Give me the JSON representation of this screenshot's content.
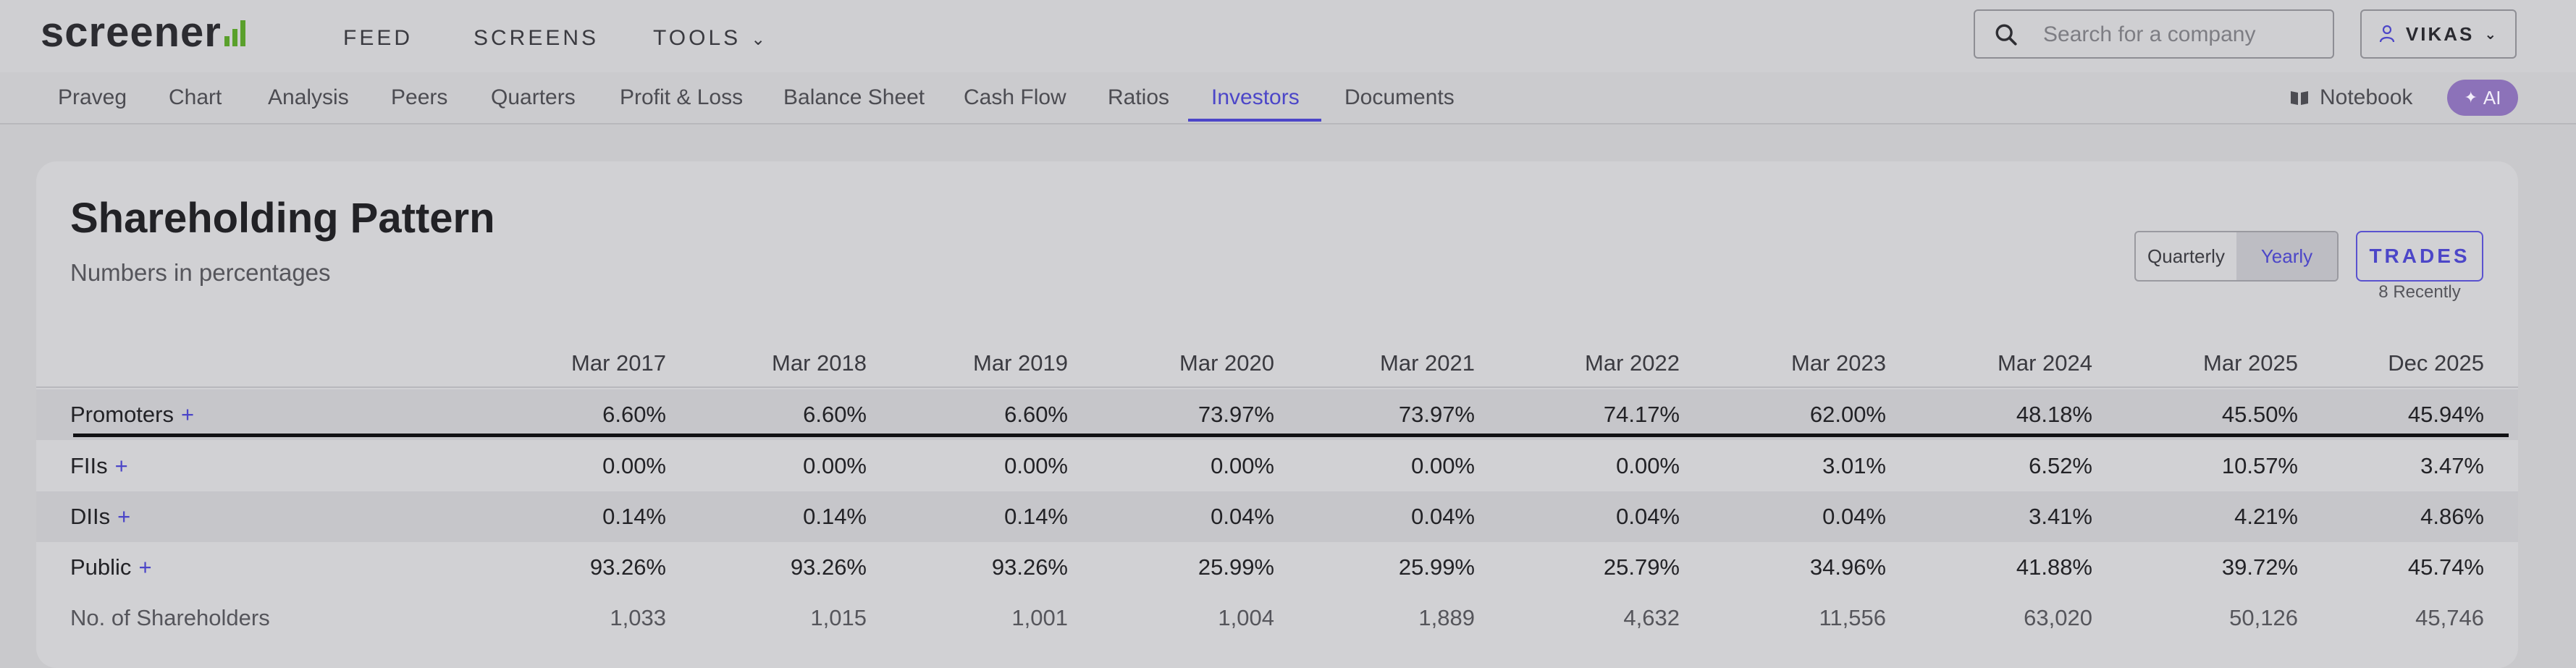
{
  "header": {
    "logo_text": "screener",
    "nav": [
      {
        "label": "FEED"
      },
      {
        "label": "SCREENS"
      },
      {
        "label": "TOOLS"
      }
    ],
    "search_placeholder": "Search for a company",
    "user_label": "VIKAS",
    "logo_color": "#5aa02c"
  },
  "subnav": {
    "items": [
      {
        "label": "Praveg"
      },
      {
        "label": "Chart"
      },
      {
        "label": "Analysis"
      },
      {
        "label": "Peers"
      },
      {
        "label": "Quarters"
      },
      {
        "label": "Profit & Loss"
      },
      {
        "label": "Balance Sheet"
      },
      {
        "label": "Cash Flow"
      },
      {
        "label": "Ratios"
      },
      {
        "label": "Investors"
      },
      {
        "label": "Documents"
      }
    ],
    "active": "Investors",
    "notebook_label": "Notebook",
    "ai_label": "AI",
    "accent_color": "#4c46c8"
  },
  "section": {
    "title": "Shareholding Pattern",
    "subtitle": "Numbers in percentages",
    "toggle": {
      "options": [
        "Quarterly",
        "Yearly"
      ],
      "selected": "Yearly"
    },
    "trades_label": "TRADES",
    "trades_note": "8 Recently"
  },
  "table": {
    "columns": [
      "Mar 2017",
      "Mar 2018",
      "Mar 2019",
      "Mar 2020",
      "Mar 2021",
      "Mar 2022",
      "Mar 2023",
      "Mar 2024",
      "Mar 2025",
      "Dec 2025"
    ],
    "rows": [
      {
        "label": "Promoters",
        "expandable": "+",
        "values": [
          "6.60%",
          "6.60%",
          "6.60%",
          "73.97%",
          "73.97%",
          "74.17%",
          "62.00%",
          "48.18%",
          "45.50%",
          "45.94%"
        ]
      },
      {
        "label": "FIIs",
        "expandable": "+",
        "values": [
          "0.00%",
          "0.00%",
          "0.00%",
          "0.00%",
          "0.00%",
          "0.00%",
          "3.01%",
          "6.52%",
          "10.57%",
          "3.47%"
        ]
      },
      {
        "label": "DIIs",
        "expandable": "+",
        "values": [
          "0.14%",
          "0.14%",
          "0.14%",
          "0.04%",
          "0.04%",
          "0.04%",
          "0.04%",
          "3.41%",
          "4.21%",
          "4.86%"
        ]
      },
      {
        "label": "Public",
        "expandable": "+",
        "values": [
          "93.26%",
          "93.26%",
          "93.26%",
          "25.99%",
          "25.99%",
          "25.79%",
          "34.96%",
          "41.88%",
          "39.72%",
          "45.74%"
        ]
      },
      {
        "label": "No. of Shareholders",
        "expandable": "",
        "values": [
          "1,033",
          "1,015",
          "1,001",
          "1,004",
          "1,889",
          "4,632",
          "11,556",
          "63,020",
          "50,126",
          "45,746"
        ]
      }
    ]
  }
}
